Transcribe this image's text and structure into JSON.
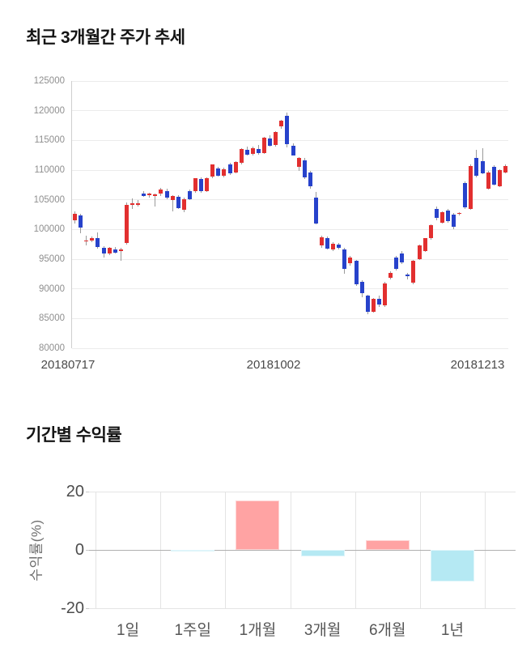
{
  "chart_data": [
    {
      "type": "candlestick",
      "title": "최근 3개월간 주가 추세",
      "ylabel": "",
      "ylim": [
        80000,
        125000
      ],
      "y_tick_step": 5000,
      "y_tick_labels": [
        "125000",
        "120000",
        "115000",
        "110000",
        "105000",
        "100000",
        "95000",
        "90000",
        "85000",
        "80000"
      ],
      "x_axis_dates": [
        "20180717",
        "20181002",
        "20181213"
      ],
      "grid": true,
      "colors": {
        "up_candle": "#e22f2f",
        "down_candle": "#2742cb",
        "wick": "#9a9a9a",
        "grid_line": "#ebebeb",
        "axis_line": "#cfcfcf",
        "y_tick_text": "#8f8f8f",
        "x_tick_text": "#4a4a4a"
      },
      "ohlc_legend": "each item is [open, high, low, close] in KRW",
      "ohlc": [
        [
          101500,
          103100,
          101000,
          102600
        ],
        [
          102300,
          102600,
          99400,
          100300
        ],
        [
          98200,
          98900,
          97300,
          98200
        ],
        [
          98100,
          98800,
          97800,
          98500
        ],
        [
          98600,
          99500,
          96800,
          97000
        ],
        [
          96900,
          97200,
          95300,
          95900
        ],
        [
          96000,
          97100,
          95700,
          96900
        ],
        [
          96700,
          97000,
          95900,
          96100
        ],
        [
          96300,
          96900,
          94700,
          96700
        ],
        [
          97700,
          104500,
          97500,
          104200
        ],
        [
          104300,
          105200,
          103500,
          104400
        ],
        [
          104400,
          105000,
          103800,
          104400
        ],
        [
          106000,
          106400,
          105500,
          105700
        ],
        [
          105800,
          106200,
          105300,
          106100
        ],
        [
          105800,
          106100,
          103900,
          105900
        ],
        [
          106000,
          107000,
          105700,
          106700
        ],
        [
          106500,
          106800,
          105100,
          105300
        ],
        [
          104900,
          105800,
          103100,
          105600
        ],
        [
          105500,
          105800,
          103400,
          103600
        ],
        [
          103300,
          105300,
          102900,
          105100
        ],
        [
          106500,
          106700,
          104900,
          105100
        ],
        [
          106400,
          108700,
          106200,
          108600
        ],
        [
          108500,
          108800,
          106200,
          106400
        ],
        [
          106500,
          108800,
          106300,
          108700
        ],
        [
          108900,
          111000,
          108600,
          110900
        ],
        [
          110300,
          110600,
          108900,
          109000
        ],
        [
          109100,
          110400,
          108800,
          110200
        ],
        [
          110900,
          111200,
          109200,
          109400
        ],
        [
          109600,
          111500,
          109400,
          111300
        ],
        [
          111200,
          113700,
          111000,
          113500
        ],
        [
          113400,
          113900,
          112400,
          112600
        ],
        [
          112700,
          114000,
          112500,
          113700
        ],
        [
          113600,
          114200,
          112600,
          112900
        ],
        [
          112800,
          115600,
          112700,
          115400
        ],
        [
          115300,
          115800,
          113900,
          114100
        ],
        [
          114200,
          116600,
          114000,
          116400
        ],
        [
          117300,
          118400,
          117000,
          118300
        ],
        [
          119100,
          119700,
          113800,
          114400
        ],
        [
          114100,
          114500,
          112400,
          112500
        ],
        [
          110500,
          112200,
          109900,
          112000
        ],
        [
          111700,
          112000,
          108500,
          108800
        ],
        [
          109600,
          109900,
          106900,
          107300
        ],
        [
          105300,
          106300,
          100800,
          101000
        ],
        [
          97300,
          99000,
          96900,
          98700
        ],
        [
          98500,
          98800,
          96600,
          96800
        ],
        [
          96700,
          97800,
          96300,
          97600
        ],
        [
          97400,
          97700,
          96600,
          96900
        ],
        [
          96600,
          96900,
          92600,
          93300
        ],
        [
          94300,
          95600,
          93900,
          95300
        ],
        [
          94700,
          94900,
          90500,
          90800
        ],
        [
          91200,
          91500,
          88600,
          89300
        ],
        [
          88800,
          89000,
          85700,
          86200
        ],
        [
          86200,
          88500,
          86000,
          88300
        ],
        [
          88300,
          88800,
          87000,
          87300
        ],
        [
          87200,
          91200,
          87000,
          90900
        ],
        [
          91900,
          93000,
          91600,
          92700
        ],
        [
          95300,
          95500,
          93100,
          93300
        ],
        [
          96000,
          96300,
          94200,
          94400
        ],
        [
          92400,
          92700,
          91600,
          92300
        ],
        [
          91000,
          94900,
          90800,
          94700
        ],
        [
          95000,
          97500,
          94800,
          97300
        ],
        [
          96400,
          98600,
          96200,
          98500
        ],
        [
          98600,
          100900,
          98300,
          100700
        ],
        [
          103500,
          103800,
          101500,
          101900
        ],
        [
          101200,
          103100,
          101000,
          102900
        ],
        [
          103200,
          103400,
          101200,
          101400
        ],
        [
          102500,
          102800,
          100000,
          100500
        ],
        [
          102700,
          102900,
          102400,
          102800
        ],
        [
          107800,
          108100,
          103400,
          103700
        ],
        [
          103500,
          111000,
          103300,
          110700
        ],
        [
          112100,
          113400,
          108800,
          109000
        ],
        [
          111500,
          113700,
          109300,
          109500
        ],
        [
          106900,
          109800,
          106700,
          109600
        ],
        [
          110500,
          110800,
          107400,
          107600
        ],
        [
          107300,
          110200,
          107100,
          110000
        ],
        [
          109600,
          110900,
          109400,
          110750
        ]
      ]
    },
    {
      "type": "bar",
      "title": "기간별 수익률",
      "ylabel": "수익률(%)",
      "categories": [
        "1일",
        "1주일",
        "1개월",
        "3개월",
        "6개월",
        "1년"
      ],
      "values": [
        0.0,
        -0.4,
        17.0,
        -2.2,
        3.3,
        -10.7
      ],
      "ylim": [
        -20,
        20
      ],
      "y_ticks": [
        "20",
        "0",
        "-20"
      ],
      "grid": true,
      "legend_position": "none",
      "colors": {
        "positive_bar": "#ffa3a3",
        "negative_bar": "#b5e9f3",
        "zero_line": "#b0b0b0",
        "grid_line": "#e4e4e4",
        "tick_text": "#4c4c4c",
        "category_text": "#565656"
      }
    }
  ]
}
